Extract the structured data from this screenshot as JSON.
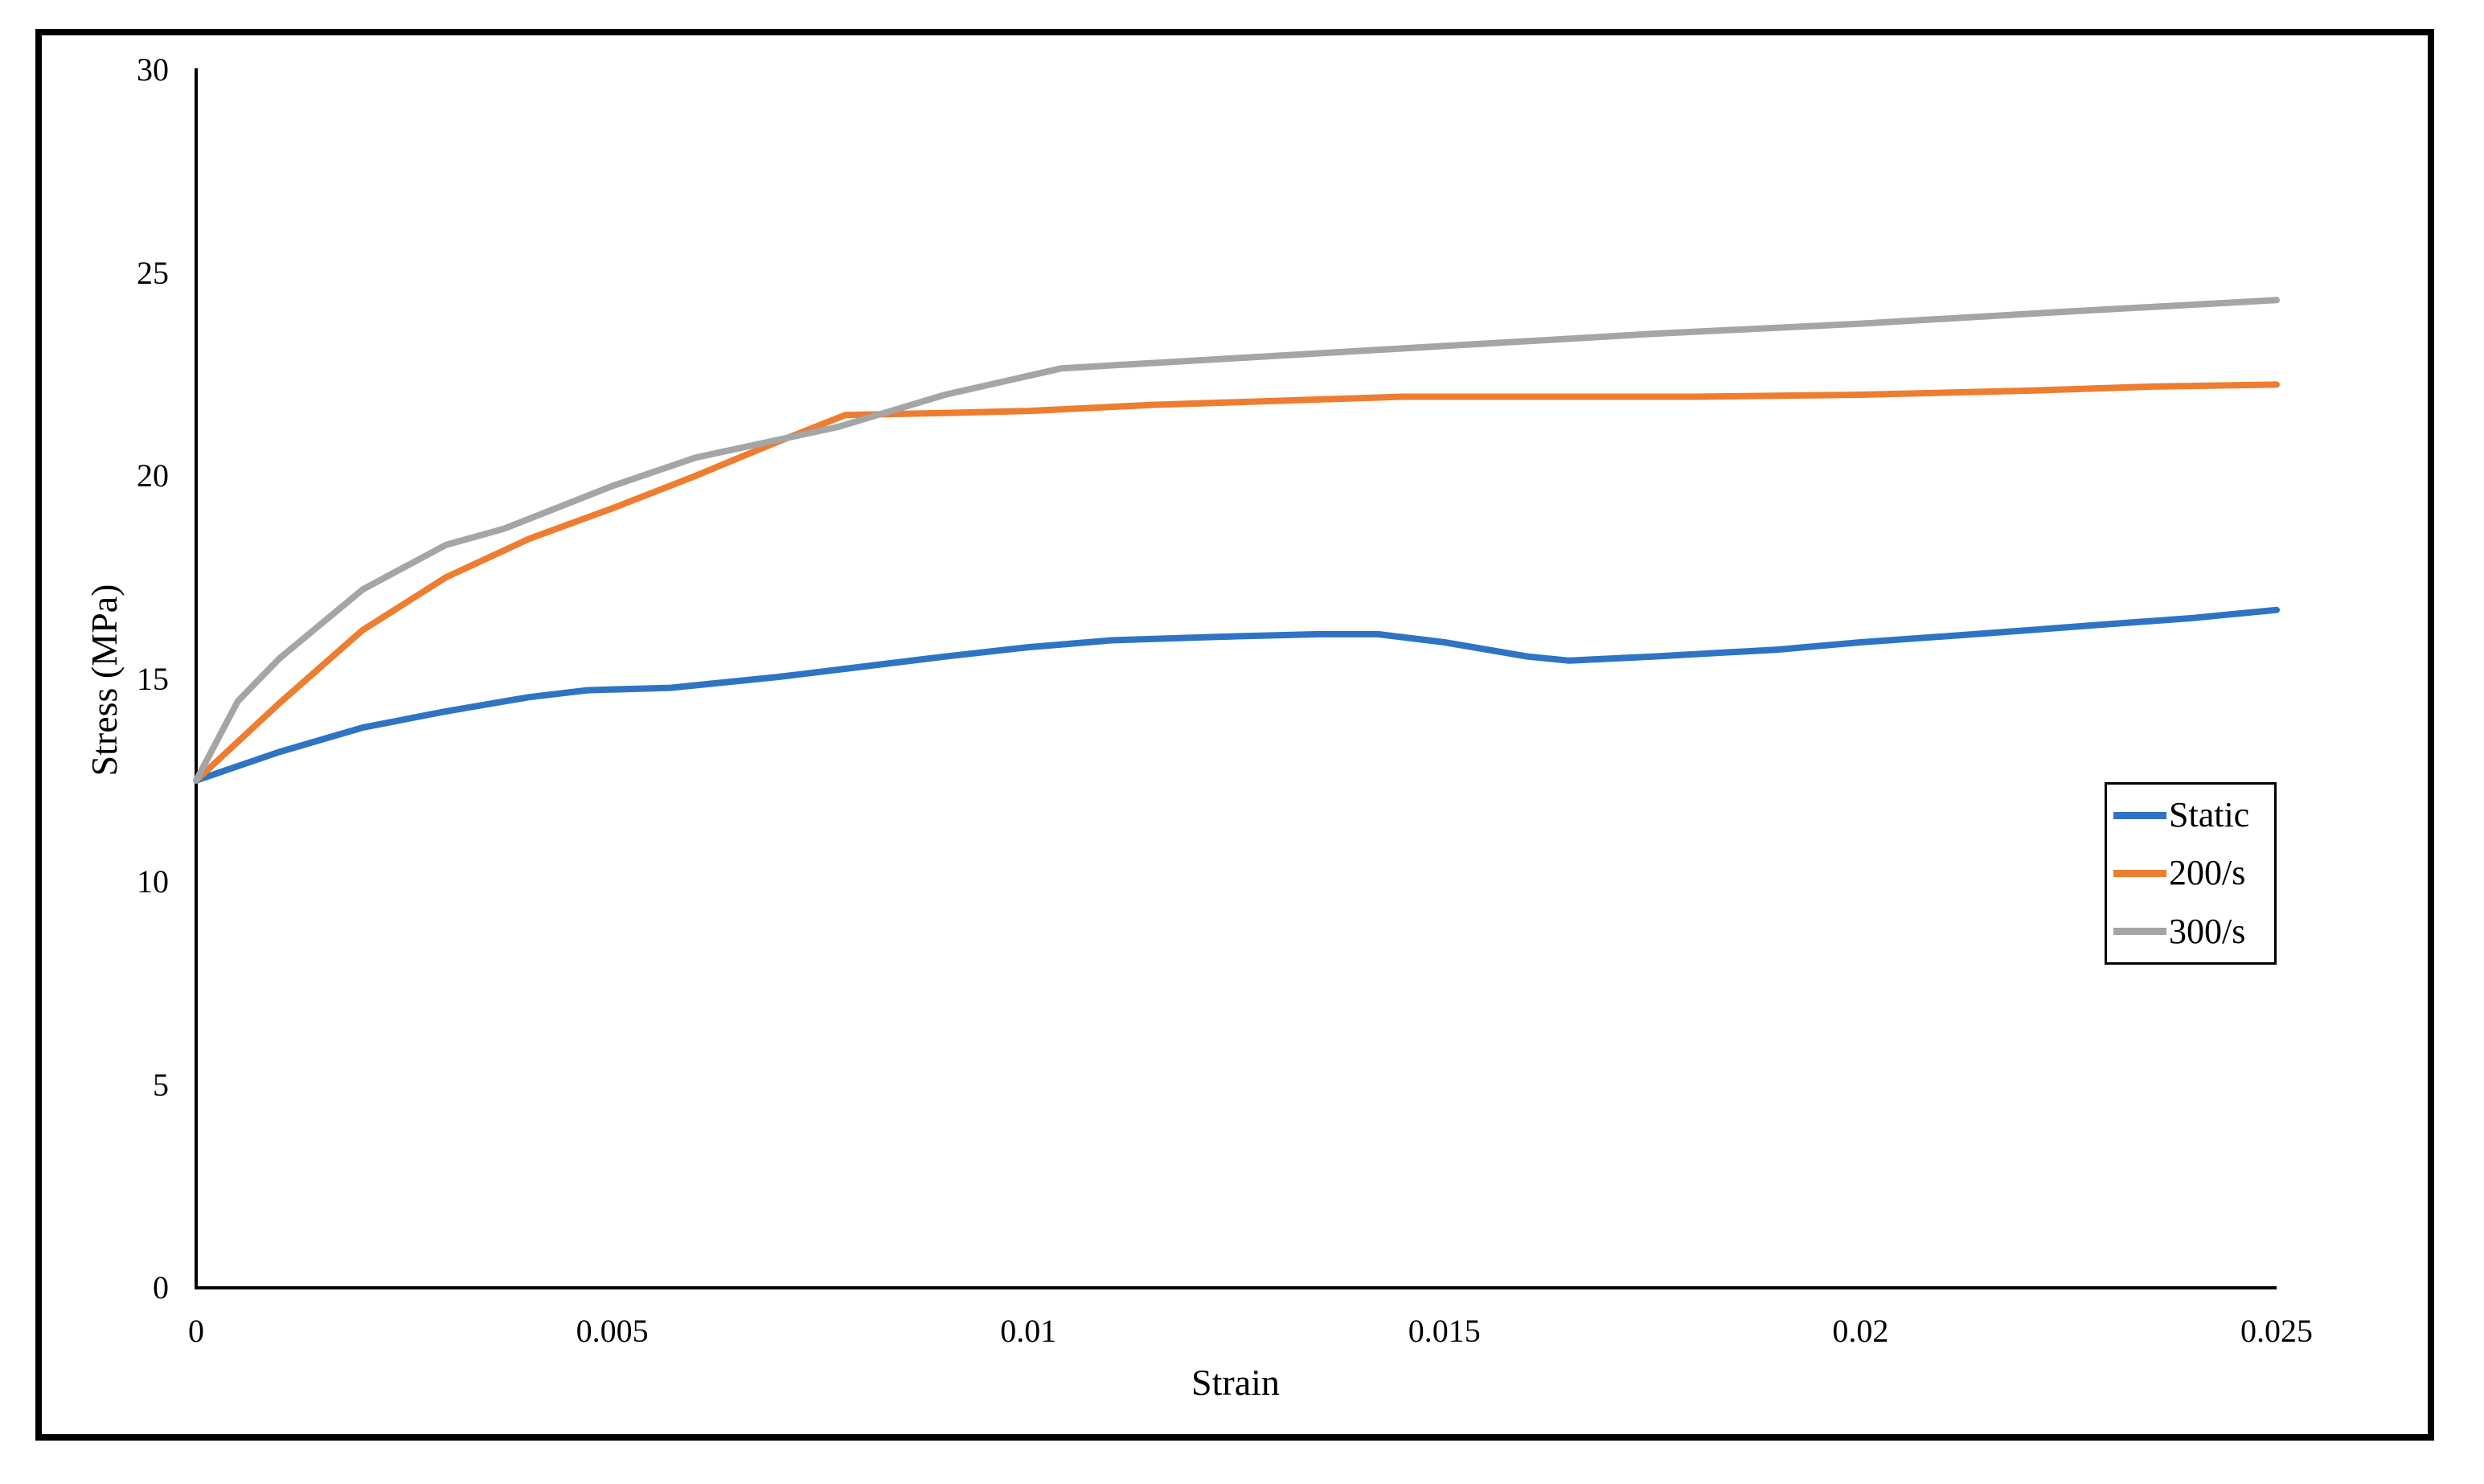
{
  "figure": {
    "kind": "stress-strain line chart"
  },
  "chart_data": {
    "type": "line",
    "title": "",
    "xlabel": "Strain",
    "ylabel": "Stress (MPa)",
    "xlim": [
      0,
      0.025
    ],
    "ylim": [
      0,
      30
    ],
    "grid": false,
    "tick_marks": false,
    "legend_position": "middle-right",
    "legend_border_color": "#000000",
    "axis_color": "#000000",
    "x_ticks": {
      "values": [
        0,
        0.005,
        0.01,
        0.015,
        0.02,
        0.025
      ],
      "labels": [
        "0",
        "0.005",
        "0.01",
        "0.015",
        "0.02",
        "0.025"
      ]
    },
    "y_ticks": {
      "values": [
        0,
        5,
        10,
        15,
        20,
        25,
        30
      ],
      "labels": [
        "0",
        "5",
        "10",
        "15",
        "20",
        "25",
        "30"
      ]
    },
    "series": [
      {
        "name": "Static",
        "color": "#2E74C4",
        "points": [
          [
            0,
            12.5
          ],
          [
            0.001,
            13.2
          ],
          [
            0.002,
            13.8
          ],
          [
            0.003,
            14.2
          ],
          [
            0.004,
            14.55
          ],
          [
            0.0047,
            14.72
          ],
          [
            0.0057,
            14.78
          ],
          [
            0.007,
            15.05
          ],
          [
            0.008,
            15.3
          ],
          [
            0.009,
            15.55
          ],
          [
            0.01,
            15.78
          ],
          [
            0.011,
            15.95
          ],
          [
            0.0125,
            16.05
          ],
          [
            0.0135,
            16.1
          ],
          [
            0.0142,
            16.1
          ],
          [
            0.015,
            15.9
          ],
          [
            0.016,
            15.55
          ],
          [
            0.0165,
            15.45
          ],
          [
            0.0175,
            15.55
          ],
          [
            0.019,
            15.72
          ],
          [
            0.02,
            15.9
          ],
          [
            0.0215,
            16.12
          ],
          [
            0.023,
            16.35
          ],
          [
            0.024,
            16.5
          ],
          [
            0.025,
            16.7
          ]
        ]
      },
      {
        "name": "200/s",
        "color": "#ED7D31",
        "points": [
          [
            0,
            12.5
          ],
          [
            0.001,
            14.4
          ],
          [
            0.002,
            16.2
          ],
          [
            0.003,
            17.5
          ],
          [
            0.004,
            18.45
          ],
          [
            0.005,
            19.2
          ],
          [
            0.006,
            20.0
          ],
          [
            0.007,
            20.85
          ],
          [
            0.0078,
            21.5
          ],
          [
            0.009,
            21.55
          ],
          [
            0.01,
            21.6
          ],
          [
            0.0115,
            21.75
          ],
          [
            0.013,
            21.85
          ],
          [
            0.0145,
            21.95
          ],
          [
            0.016,
            21.95
          ],
          [
            0.018,
            21.95
          ],
          [
            0.02,
            22.0
          ],
          [
            0.022,
            22.1
          ],
          [
            0.0235,
            22.2
          ],
          [
            0.025,
            22.25
          ]
        ]
      },
      {
        "name": "300/s",
        "color": "#A5A5A5",
        "points": [
          [
            0,
            12.5
          ],
          [
            0.0005,
            14.45
          ],
          [
            0.001,
            15.5
          ],
          [
            0.002,
            17.2
          ],
          [
            0.003,
            18.3
          ],
          [
            0.0037,
            18.7
          ],
          [
            0.005,
            19.75
          ],
          [
            0.006,
            20.45
          ],
          [
            0.0077,
            21.2
          ],
          [
            0.009,
            22.0
          ],
          [
            0.0104,
            22.65
          ],
          [
            0.0125,
            22.9
          ],
          [
            0.015,
            23.2
          ],
          [
            0.0175,
            23.5
          ],
          [
            0.02,
            23.75
          ],
          [
            0.0225,
            24.05
          ],
          [
            0.025,
            24.33
          ]
        ]
      }
    ]
  }
}
